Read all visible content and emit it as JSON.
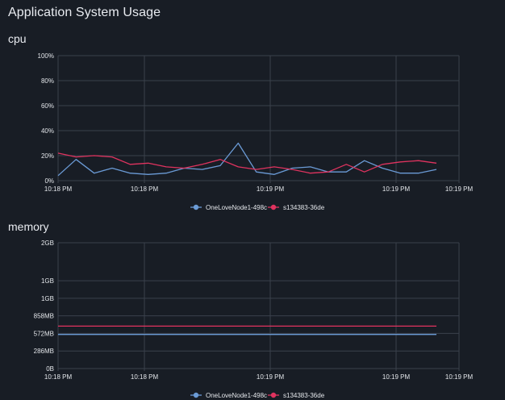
{
  "page": {
    "title": "Application System Usage"
  },
  "colors": {
    "background": "#181d25",
    "grid": "#3a414c",
    "series1": "#6b9bd6",
    "series2": "#e0335f"
  },
  "icons": {
    "legend_marker": "circle-line-marker"
  },
  "chart_data": [
    {
      "type": "line",
      "title": "cpu",
      "y_unit": "%",
      "ylim": [
        0,
        100
      ],
      "y_ticks": [
        "0%",
        "20%",
        "40%",
        "60%",
        "80%",
        "100%"
      ],
      "x_ticks": [
        "10:18 PM",
        "10:18 PM",
        "10:19 PM",
        "10:19 PM",
        "10:19 PM"
      ],
      "grid": true,
      "legend_position": "bottom-center",
      "series": [
        {
          "name": "OneLoveNode1-498c",
          "color": "#6b9bd6",
          "values": [
            4,
            17,
            6,
            10,
            6,
            5,
            6,
            10,
            9,
            12,
            30,
            7,
            5,
            10,
            11,
            7,
            7,
            16,
            10,
            6,
            6,
            9
          ]
        },
        {
          "name": "s134383-36de",
          "color": "#e0335f",
          "values": [
            22,
            19,
            20,
            19,
            13,
            14,
            11,
            10,
            13,
            17,
            11,
            9,
            11,
            9,
            6,
            7,
            13,
            7,
            13,
            15,
            16,
            14
          ]
        }
      ]
    },
    {
      "type": "line",
      "title": "memory",
      "y_unit": "MB",
      "ylim": [
        0,
        2048
      ],
      "y_ticks": [
        "0B",
        "286MB",
        "572MB",
        "858MB",
        "1GB",
        "1GB",
        "2GB"
      ],
      "y_tick_values": [
        0,
        286,
        572,
        858,
        1144,
        1430,
        2048
      ],
      "x_ticks": [
        "10:18 PM",
        "10:18 PM",
        "10:19 PM",
        "10:19 PM",
        "10:19 PM"
      ],
      "grid": true,
      "legend_position": "bottom-center",
      "series": [
        {
          "name": "OneLoveNode1-498c",
          "color": "#6b9bd6",
          "values": [
            555,
            555,
            555,
            555,
            555,
            555,
            555,
            555,
            555,
            555,
            555,
            555,
            555,
            555,
            555,
            555,
            555,
            555,
            555,
            555,
            555,
            555
          ]
        },
        {
          "name": "s134383-36de",
          "color": "#e0335f",
          "values": [
            690,
            690,
            690,
            690,
            690,
            690,
            690,
            690,
            690,
            690,
            690,
            690,
            690,
            690,
            690,
            690,
            690,
            690,
            690,
            690,
            690,
            690
          ]
        }
      ]
    }
  ]
}
